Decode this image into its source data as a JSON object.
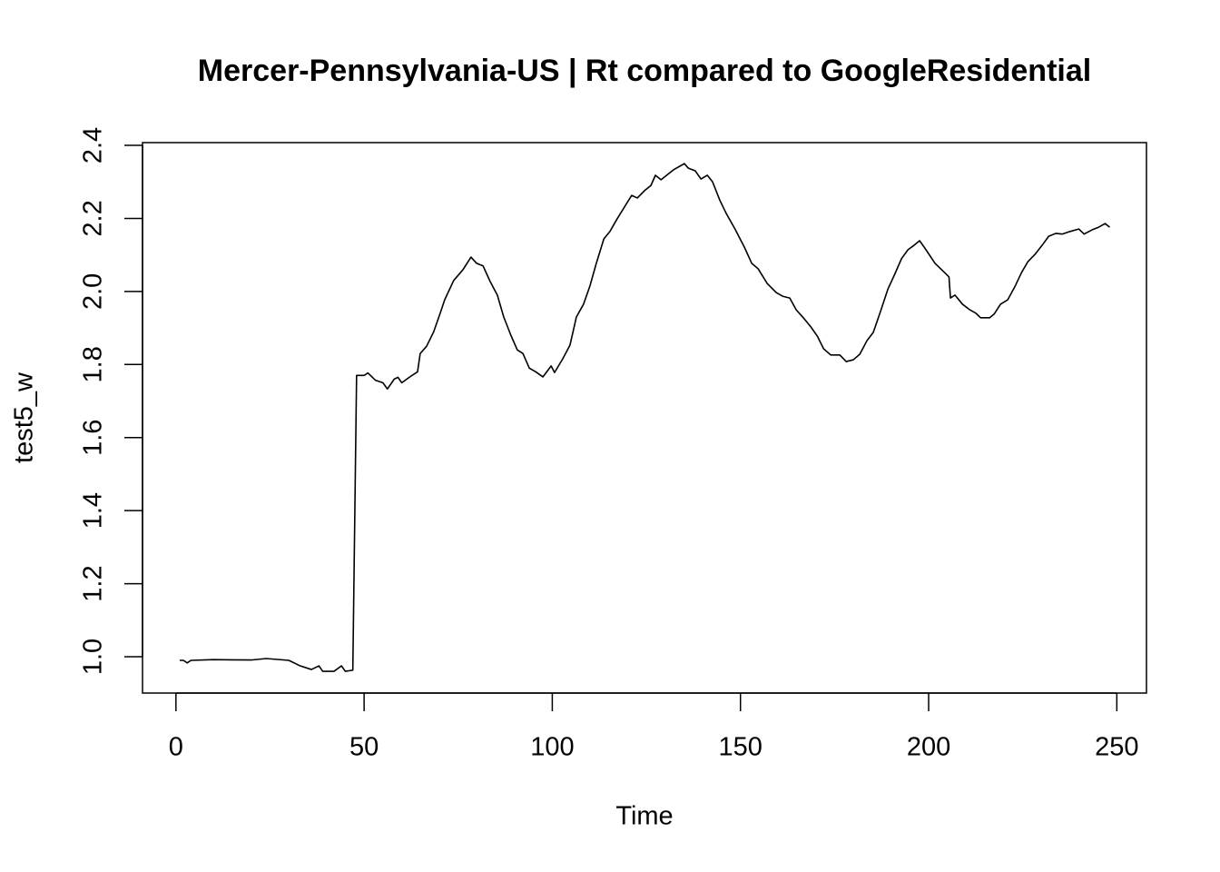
{
  "chart_data": {
    "type": "line",
    "title": "Mercer-Pennsylvania-US | Rt compared to GoogleResidential",
    "x_label": "Time",
    "y_label": "test5_w",
    "color": "#000000",
    "x": [
      1,
      2,
      3,
      4,
      10,
      20,
      24,
      30,
      33,
      36,
      38,
      39,
      42,
      44,
      45,
      47,
      48,
      50,
      51,
      53,
      55,
      56.2,
      58,
      59,
      60,
      62,
      64.2,
      64.9,
      66.6,
      68.5,
      70.2,
      71.4,
      73.8,
      76.3,
      78.4,
      79.9,
      81.6,
      83.5,
      85.4,
      87.1,
      89,
      90.7,
      92.2,
      93.9,
      95.6,
      97.5,
      99.7,
      100.6,
      102.8,
      104.7,
      106.4,
      108.3,
      110,
      111.7,
      113.7,
      115.3,
      117.3,
      119.7,
      121.1,
      122.6,
      124.5,
      126.2,
      127.4,
      128.9,
      130.6,
      132.2,
      135.1,
      136.1,
      138,
      139.5,
      141.2,
      142.6,
      144.5,
      146.2,
      148.6,
      151.1,
      153,
      154.7,
      157.1,
      159.5,
      161.2,
      163.1,
      164.8,
      166.7,
      168.7,
      170.4,
      172.1,
      174,
      176.4,
      178.1,
      180,
      181.7,
      183.6,
      185.3,
      187.3,
      189.2,
      190.9,
      192.8,
      194.5,
      196.2,
      197.6,
      199.3,
      201.7,
      204.2,
      205.4,
      205.8,
      207,
      209,
      210.9,
      212.6,
      213.8,
      216.2,
      217.4,
      219.1,
      221,
      223,
      224.7,
      226.4,
      228.3,
      230.2,
      231.9,
      233.8,
      235.5,
      237.5,
      239.9,
      241.3,
      243.5,
      245.2,
      246.9,
      248.1
    ],
    "values": [
      0.99,
      0.99,
      0.983,
      0.99,
      0.992,
      0.991,
      0.995,
      0.99,
      0.975,
      0.965,
      0.975,
      0.96,
      0.96,
      0.975,
      0.96,
      0.963,
      1.77,
      1.77,
      1.777,
      1.757,
      1.75,
      1.733,
      1.76,
      1.765,
      1.75,
      1.765,
      1.78,
      1.83,
      1.85,
      1.89,
      1.94,
      1.977,
      2.03,
      2.06,
      2.094,
      2.077,
      2.07,
      2.027,
      1.99,
      1.93,
      1.88,
      1.84,
      1.83,
      1.79,
      1.78,
      1.766,
      1.796,
      1.778,
      1.816,
      1.853,
      1.93,
      1.965,
      2.015,
      2.077,
      2.144,
      2.164,
      2.2,
      2.24,
      2.263,
      2.256,
      2.276,
      2.29,
      2.318,
      2.306,
      2.32,
      2.333,
      2.35,
      2.338,
      2.33,
      2.308,
      2.318,
      2.3,
      2.25,
      2.214,
      2.17,
      2.12,
      2.077,
      2.062,
      2.022,
      1.997,
      1.987,
      1.982,
      1.95,
      1.928,
      1.903,
      1.878,
      1.843,
      1.826,
      1.826,
      1.808,
      1.813,
      1.828,
      1.865,
      1.888,
      1.948,
      2.007,
      2.045,
      2.09,
      2.114,
      2.127,
      2.139,
      2.114,
      2.077,
      2.052,
      2.04,
      1.982,
      1.99,
      1.965,
      1.95,
      1.94,
      1.928,
      1.928,
      1.938,
      1.965,
      1.977,
      2.015,
      2.052,
      2.082,
      2.102,
      2.127,
      2.151,
      2.159,
      2.157,
      2.164,
      2.171,
      2.157,
      2.169,
      2.176,
      2.186,
      2.176
    ],
    "xlim": [
      -8.88,
      257.88
    ],
    "ylim": [
      0.9005,
      2.4075
    ],
    "xticks": [
      0,
      50,
      100,
      150,
      200,
      250
    ],
    "yticks": [
      {
        "value": 1.0,
        "label": "1.0"
      },
      {
        "value": 1.2,
        "label": "1.2"
      },
      {
        "value": 1.4,
        "label": "1.4"
      },
      {
        "value": 1.6,
        "label": "1.6"
      },
      {
        "value": 1.8,
        "label": "1.8"
      },
      {
        "value": 2.0,
        "label": "2.0"
      },
      {
        "value": 2.2,
        "label": "2.2"
      },
      {
        "value": 2.4,
        "label": "2.4"
      }
    ]
  }
}
